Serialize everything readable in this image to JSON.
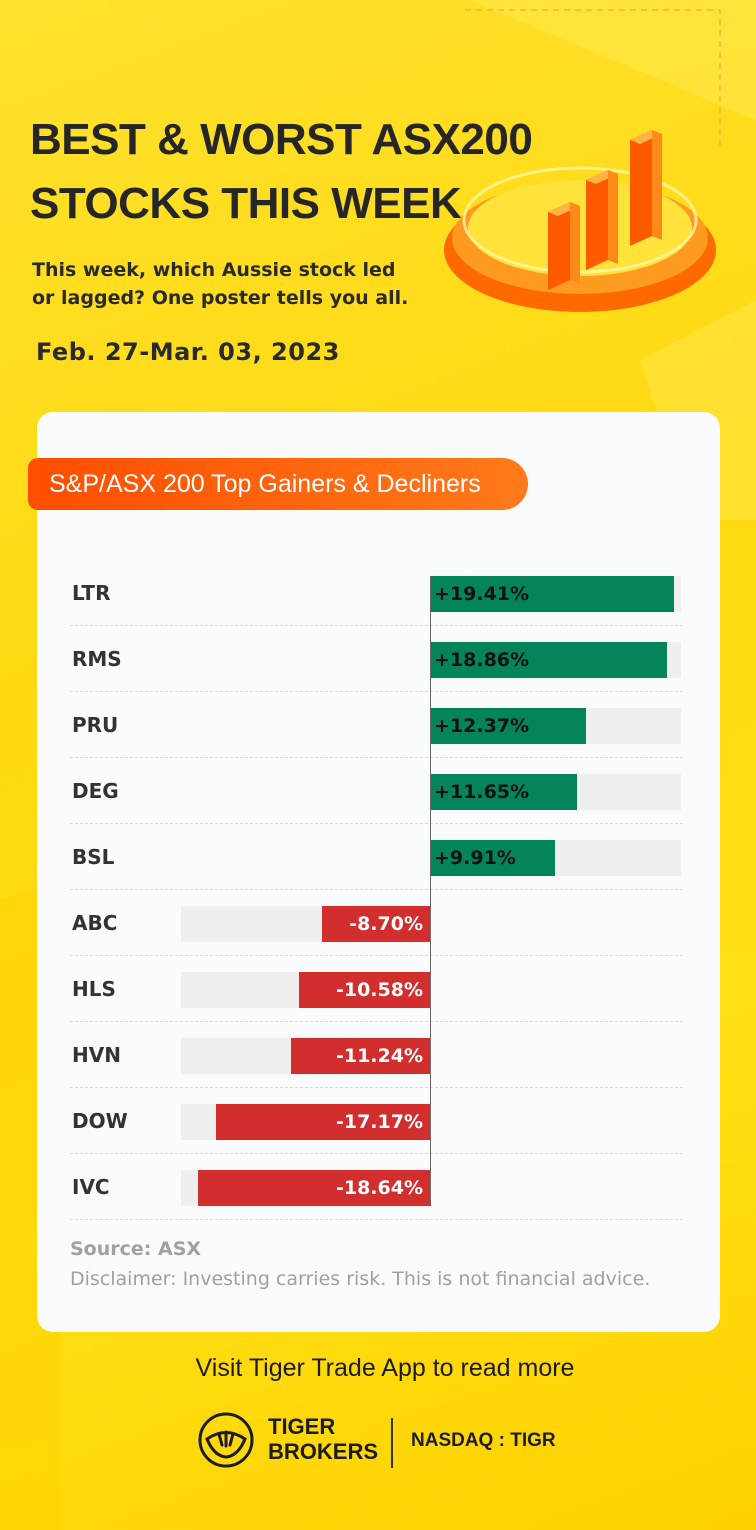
{
  "header": {
    "title_line1": "BEST & WORST ASX200",
    "title_line2": "STOCKS THIS WEEK",
    "subtitle_line1": "This week, which Aussie stock led",
    "subtitle_line2": "or lagged? One poster tells you all.",
    "date": "Feb. 27-Mar. 03, 2023"
  },
  "colors": {
    "background": "#ffd810",
    "gainer": "#04845a",
    "decliner": "#d32e2e",
    "pill": "#ff5a00"
  },
  "chart_data": {
    "type": "bar",
    "title": "S&P/ASX 200 Top Gainers & Decliners",
    "orientation": "horizontal",
    "xlim": [
      -20,
      20
    ],
    "grid": false,
    "categories": [
      "LTR",
      "RMS",
      "PRU",
      "DEG",
      "BSL",
      "ABC",
      "HLS",
      "HVN",
      "DOW",
      "IVC"
    ],
    "values": [
      19.41,
      18.86,
      12.37,
      11.65,
      9.91,
      -8.7,
      -10.58,
      -11.24,
      -17.17,
      -18.64
    ],
    "labels": [
      "+19.41%",
      "+18.86%",
      "+12.37%",
      "+11.65%",
      "+9.91%",
      "-8.70%",
      "-10.58%",
      "-11.24%",
      "-17.17%",
      "-18.64%"
    ]
  },
  "footer": {
    "source": "Source: ASX",
    "disclaimer": "Disclaimer: Investing carries risk. This is not financial advice.",
    "visit": "Visit Tiger Trade App to read more",
    "brand_line1": "TIGER",
    "brand_line2": "BROKERS",
    "nasdaq": "NASDAQ : TIGR",
    "logo_icon": "tiger-logo-icon"
  }
}
